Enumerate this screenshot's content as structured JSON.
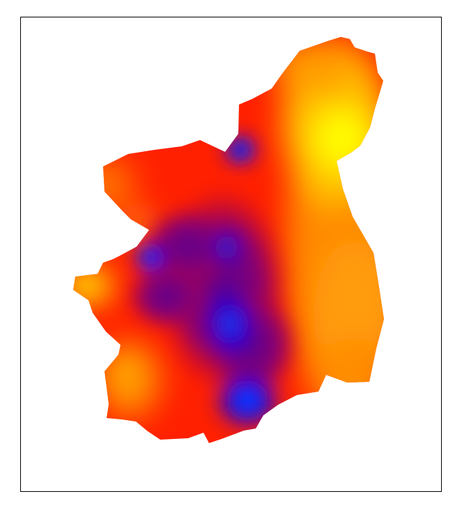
{
  "map": {
    "type": "interpolated-surface",
    "legend": null,
    "colors": {
      "frame": "#000000",
      "background": "#ffffff",
      "ramp_low": "#0000ff",
      "ramp_mid_low": "#800080",
      "ramp_mid": "#ff0000",
      "ramp_mid_high": "#ff8000",
      "ramp_high": "#ffff00",
      "hotspot_low": "#1e6dff"
    }
  }
}
